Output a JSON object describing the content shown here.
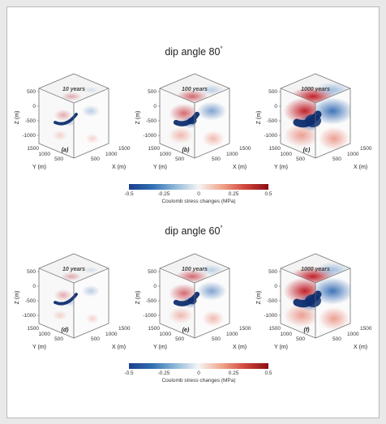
{
  "sections": [
    {
      "title": "dip angle 80",
      "panels": [
        {
          "years": "10 years",
          "label": "(a)",
          "intensity": 0.15
        },
        {
          "years": "100 years",
          "label": "(b)",
          "intensity": 0.55
        },
        {
          "years": "1000 years",
          "label": "(c)",
          "intensity": 1.0
        }
      ]
    },
    {
      "title": "dip angle 60",
      "panels": [
        {
          "years": "10 years",
          "label": "(d)",
          "intensity": 0.15
        },
        {
          "years": "100 years",
          "label": "(e)",
          "intensity": 0.55
        },
        {
          "years": "1000 years",
          "label": "(f)",
          "intensity": 1.0
        }
      ]
    }
  ],
  "axes": {
    "z_label": "Z (m)",
    "y_label": "Y (m)",
    "x_label": "X (m)",
    "z_ticks": [
      "500",
      "0",
      "-500",
      "-1000"
    ],
    "y_ticks": [
      "1500",
      "1000",
      "500"
    ],
    "x_ticks": [
      "1500",
      "1000",
      "500"
    ]
  },
  "colorbar": {
    "ticks": [
      "-0.5",
      "-0.25",
      "0",
      "0.25",
      "0.5"
    ],
    "label": "Coulomb stress changes (MPa)",
    "colors": [
      "#1c3f8c",
      "#2f6fb3",
      "#8fb8d9",
      "#f5f5f5",
      "#f0a48a",
      "#d0463b",
      "#8b0d14"
    ]
  }
}
